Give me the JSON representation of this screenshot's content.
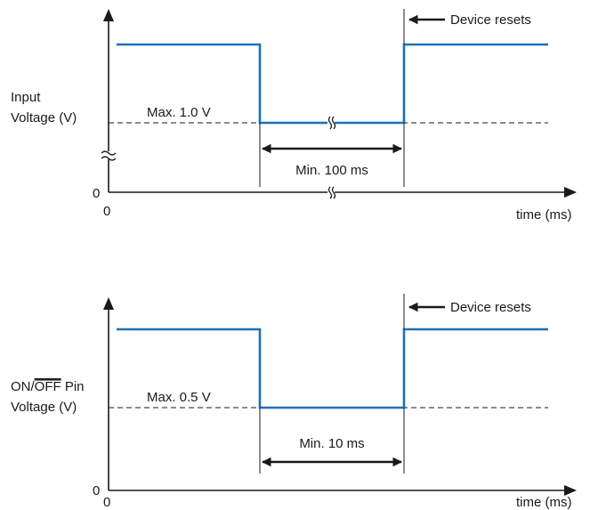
{
  "diagrams": [
    {
      "y_label_line1": "Input",
      "y_label_line2": "Voltage (V)",
      "threshold_label": "Max. 1.0 V",
      "duration_label": "Min. 100 ms",
      "event_label": "Device resets",
      "x_label": "time (ms)",
      "x_origin_label": "0",
      "y_origin_label": "0"
    },
    {
      "y_label_line1_prefix": "ON/",
      "y_label_line1_overbar": "OFF",
      "y_label_line1_suffix": " Pin",
      "y_label_line2": "Voltage (V)",
      "threshold_label": "Max. 0.5 V",
      "duration_label": "Min. 10 ms",
      "event_label": "Device resets",
      "x_label": "time (ms)",
      "x_origin_label": "0",
      "y_origin_label": "0"
    }
  ],
  "colors": {
    "signal": "#1f6fb5",
    "axis": "#1a1a1a"
  }
}
